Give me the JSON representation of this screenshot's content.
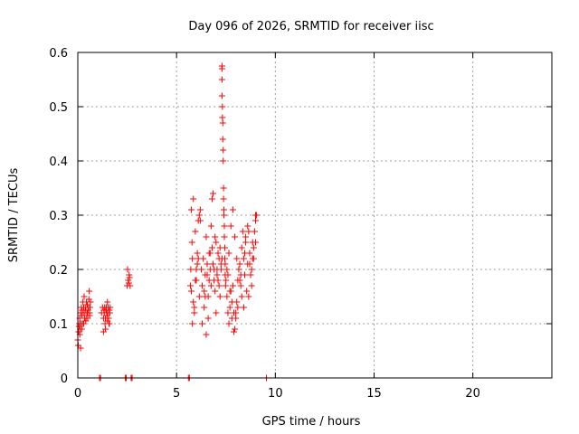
{
  "chart_data": {
    "type": "scatter",
    "title": "Day 096 of 2026, SRMTID for receiver iisc",
    "xlabel": "GPS time / hours",
    "ylabel": "SRMTID / TECUs",
    "xlim": [
      0,
      24
    ],
    "ylim": [
      0,
      0.6
    ],
    "xticks": [
      0,
      5,
      10,
      15,
      20
    ],
    "yticks": [
      0,
      0.1,
      0.2,
      0.3,
      0.4,
      0.5,
      0.6
    ],
    "xtick_labels": [
      "0",
      "5",
      "10",
      "15",
      "20"
    ],
    "ytick_labels": [
      "0",
      "0.1",
      "0.2",
      "0.3",
      "0.4",
      "0.5",
      "0.6"
    ],
    "grid": true,
    "legend": false,
    "marker": "+",
    "series": [
      {
        "name": "SRMTID",
        "color": "#ff0000",
        "x": [
          0.0,
          0.02,
          0.04,
          0.06,
          0.08,
          0.1,
          0.12,
          0.14,
          0.16,
          0.18,
          0.2,
          0.22,
          0.24,
          0.26,
          0.28,
          0.3,
          0.32,
          0.34,
          0.36,
          0.38,
          0.4,
          0.42,
          0.44,
          0.46,
          0.48,
          0.5,
          0.52,
          0.54,
          0.56,
          0.58,
          0.6,
          0.62,
          0.64,
          0.1,
          0.14,
          0.2,
          0.3,
          0.4,
          0.5,
          0.6,
          1.2,
          1.25,
          1.3,
          1.32,
          1.34,
          1.36,
          1.38,
          1.4,
          1.42,
          1.44,
          1.46,
          1.48,
          1.5,
          1.52,
          1.54,
          1.56,
          1.58,
          1.6,
          1.62,
          1.64,
          1.3,
          1.4,
          1.5,
          1.6,
          2.5,
          2.55,
          2.6,
          2.65,
          2.52,
          2.58,
          2.62,
          5.7,
          5.72,
          5.75,
          5.78,
          5.8,
          5.85,
          5.9,
          5.95,
          6.0,
          6.05,
          6.1,
          6.15,
          6.2,
          5.75,
          5.85,
          5.95,
          6.05,
          6.15,
          5.8,
          5.9,
          6.0,
          6.1,
          6.2,
          6.25,
          6.3,
          6.35,
          6.4,
          6.45,
          6.5,
          6.55,
          6.6,
          6.65,
          6.7,
          6.75,
          6.8,
          6.85,
          6.9,
          6.95,
          7.0,
          6.3,
          6.4,
          6.5,
          6.6,
          6.7,
          6.8,
          6.9,
          7.0,
          6.45,
          6.55,
          6.65,
          6.75,
          6.85,
          6.95,
          7.05,
          7.1,
          7.15,
          7.2,
          7.25,
          7.05,
          7.1,
          7.15,
          7.2,
          7.25,
          7.3,
          7.3,
          7.3,
          7.3,
          7.3,
          7.32,
          7.32,
          7.34,
          7.34,
          7.36,
          7.36,
          7.38,
          7.38,
          7.4,
          7.4,
          7.42,
          7.42,
          7.44,
          7.44,
          7.46,
          7.46,
          7.48,
          7.5,
          7.55,
          7.6,
          7.65,
          7.7,
          7.75,
          7.8,
          7.85,
          7.9,
          7.95,
          8.0,
          8.05,
          8.1,
          7.55,
          7.65,
          7.75,
          7.85,
          7.95,
          8.05,
          7.6,
          7.7,
          7.8,
          7.9,
          8.0,
          8.1,
          8.15,
          8.2,
          8.25,
          8.3,
          8.35,
          8.4,
          8.45,
          8.5,
          8.55,
          8.6,
          8.65,
          8.7,
          8.75,
          8.8,
          8.85,
          8.9,
          8.95,
          9.0,
          9.05,
          8.2,
          8.3,
          8.4,
          8.5,
          8.6,
          8.7,
          8.8,
          8.9,
          9.0,
          8.25,
          8.45,
          8.65,
          8.85,
          9.0,
          1.1,
          1.15,
          2.4,
          2.45,
          2.7,
          2.75,
          5.6,
          5.65,
          9.55
        ],
        "y": [
          0.07,
          0.06,
          0.085,
          0.095,
          0.1,
          0.11,
          0.09,
          0.12,
          0.1,
          0.13,
          0.115,
          0.125,
          0.1,
          0.14,
          0.12,
          0.13,
          0.15,
          0.11,
          0.12,
          0.125,
          0.13,
          0.11,
          0.14,
          0.12,
          0.135,
          0.12,
          0.125,
          0.13,
          0.145,
          0.16,
          0.12,
          0.13,
          0.14,
          0.08,
          0.055,
          0.09,
          0.1,
          0.105,
          0.11,
          0.115,
          0.12,
          0.13,
          0.11,
          0.125,
          0.12,
          0.13,
          0.1,
          0.11,
          0.125,
          0.13,
          0.12,
          0.115,
          0.14,
          0.12,
          0.13,
          0.11,
          0.1,
          0.125,
          0.12,
          0.13,
          0.085,
          0.09,
          0.105,
          0.1,
          0.17,
          0.18,
          0.19,
          0.17,
          0.2,
          0.175,
          0.185,
          0.17,
          0.2,
          0.16,
          0.25,
          0.22,
          0.14,
          0.12,
          0.18,
          0.2,
          0.23,
          0.29,
          0.3,
          0.31,
          0.31,
          0.33,
          0.27,
          0.21,
          0.15,
          0.1,
          0.13,
          0.18,
          0.22,
          0.29,
          0.2,
          0.17,
          0.22,
          0.16,
          0.19,
          0.26,
          0.21,
          0.15,
          0.18,
          0.23,
          0.28,
          0.33,
          0.34,
          0.2,
          0.16,
          0.12,
          0.1,
          0.13,
          0.08,
          0.11,
          0.2,
          0.24,
          0.18,
          0.25,
          0.15,
          0.19,
          0.23,
          0.17,
          0.21,
          0.26,
          0.2,
          0.18,
          0.22,
          0.24,
          0.21,
          0.19,
          0.23,
          0.17,
          0.15,
          0.2,
          0.22,
          0.575,
          0.57,
          0.55,
          0.52,
          0.5,
          0.48,
          0.47,
          0.44,
          0.42,
          0.4,
          0.35,
          0.33,
          0.31,
          0.3,
          0.28,
          0.26,
          0.24,
          0.22,
          0.21,
          0.19,
          0.17,
          0.18,
          0.15,
          0.12,
          0.1,
          0.13,
          0.16,
          0.14,
          0.17,
          0.12,
          0.09,
          0.11,
          0.14,
          0.13,
          0.2,
          0.23,
          0.28,
          0.31,
          0.26,
          0.22,
          0.19,
          0.16,
          0.11,
          0.085,
          0.12,
          0.18,
          0.2,
          0.21,
          0.17,
          0.24,
          0.27,
          0.22,
          0.19,
          0.25,
          0.16,
          0.21,
          0.27,
          0.23,
          0.19,
          0.2,
          0.25,
          0.22,
          0.27,
          0.29,
          0.3,
          0.18,
          0.15,
          0.13,
          0.26,
          0.28,
          0.21,
          0.17,
          0.24,
          0.25,
          0.19,
          0.23,
          0.15,
          0.22,
          0.3,
          0.0,
          0.0,
          0.0,
          0.0,
          0.0,
          0.0,
          0.0,
          0.0,
          0.0
        ]
      }
    ]
  }
}
